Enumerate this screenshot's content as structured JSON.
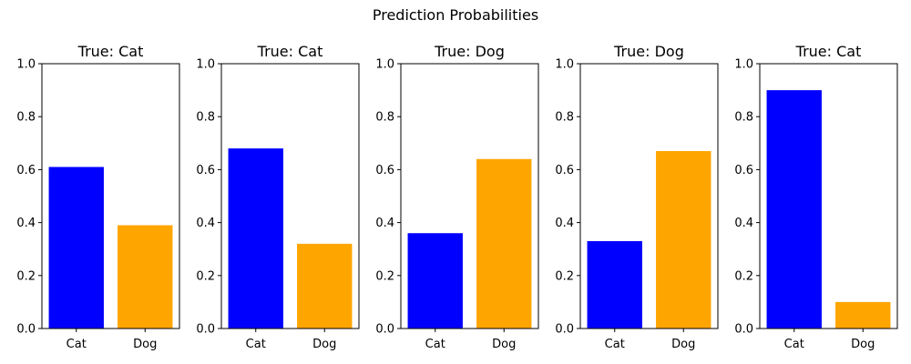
{
  "chart_data": {
    "type": "bar",
    "suptitle": "Prediction Probabilities",
    "colors": [
      "#0000ff",
      "#ffa500"
    ],
    "yticks": [
      "0.0",
      "0.2",
      "0.4",
      "0.6",
      "0.8",
      "1.0"
    ],
    "ylim": [
      0,
      1
    ],
    "grid": false,
    "panels": [
      {
        "title": "True: Cat",
        "categories": [
          "Cat",
          "Dog"
        ],
        "values": [
          0.61,
          0.39
        ]
      },
      {
        "title": "True: Cat",
        "categories": [
          "Cat",
          "Dog"
        ],
        "values": [
          0.68,
          0.32
        ]
      },
      {
        "title": "True: Dog",
        "categories": [
          "Cat",
          "Dog"
        ],
        "values": [
          0.36,
          0.64
        ]
      },
      {
        "title": "True: Dog",
        "categories": [
          "Cat",
          "Dog"
        ],
        "values": [
          0.33,
          0.67
        ]
      },
      {
        "title": "True: Cat",
        "categories": [
          "Cat",
          "Dog"
        ],
        "values": [
          0.9,
          0.1
        ]
      }
    ]
  }
}
